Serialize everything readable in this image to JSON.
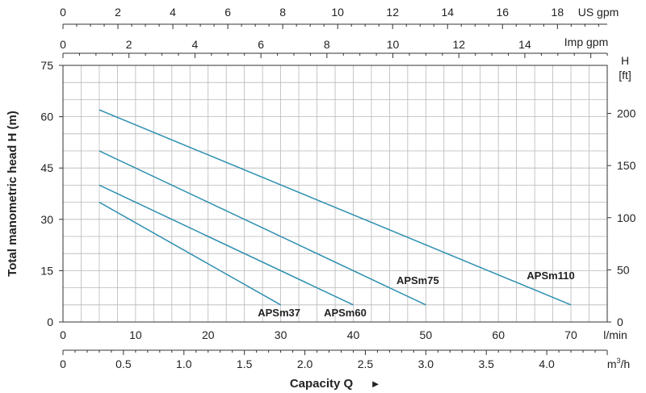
{
  "chart_data": {
    "type": "line",
    "ylabel": "Total manometric head H (m)",
    "xlabel": "Capacity Q",
    "xlabel_arrow": "►",
    "xlim": [
      0,
      75
    ],
    "ylim": [
      0,
      75
    ],
    "grid": true,
    "x_ticks": [
      "0",
      "10",
      "20",
      "30",
      "40",
      "50",
      "60",
      "70"
    ],
    "x_unit": "l/min",
    "y_ticks": [
      "0",
      "15",
      "30",
      "45",
      "60",
      "75"
    ],
    "y_ticks_values": [
      0,
      15,
      30,
      45,
      60,
      75
    ],
    "right_axis": {
      "label_line1": "H",
      "label_line2": "[ft]",
      "ticks": [
        "0",
        "50",
        "100",
        "150",
        "200"
      ],
      "tick_values": [
        0,
        50,
        100,
        150,
        200
      ]
    },
    "m3h_axis": {
      "ticks": [
        "0",
        "0.5",
        "1.0",
        "1.5",
        "2.0",
        "2.5",
        "3.0",
        "3.5",
        "4.0"
      ],
      "tick_values": [
        0,
        0.5,
        1.0,
        1.5,
        2.0,
        2.5,
        3.0,
        3.5,
        4.0
      ],
      "unit_base": "m",
      "unit_sup": "3",
      "unit_tail": "/h"
    },
    "imp_gpm_axis": {
      "ticks": [
        "0",
        "2",
        "4",
        "6",
        "8",
        "10",
        "12",
        "14"
      ],
      "tick_values": [
        0,
        2,
        4,
        6,
        8,
        10,
        12,
        14
      ],
      "unit": "Imp gpm"
    },
    "us_gpm_axis": {
      "ticks": [
        "0",
        "2",
        "4",
        "6",
        "8",
        "10",
        "12",
        "14",
        "16",
        "18"
      ],
      "tick_values": [
        0,
        2,
        4,
        6,
        8,
        10,
        12,
        14,
        16,
        18
      ],
      "unit": "US gpm"
    },
    "series": [
      {
        "name": "APSm37",
        "x": [
          5,
          30
        ],
        "y": [
          35,
          5
        ]
      },
      {
        "name": "APSm60",
        "x": [
          5,
          40
        ],
        "y": [
          40,
          5
        ]
      },
      {
        "name": "APSm75",
        "x": [
          5,
          50
        ],
        "y": [
          50,
          5
        ]
      },
      {
        "name": "APSm110",
        "x": [
          5,
          70
        ],
        "y": [
          62,
          5
        ]
      }
    ],
    "line_color": "#2e8fb0",
    "grid_color": "#b8b8b8"
  }
}
